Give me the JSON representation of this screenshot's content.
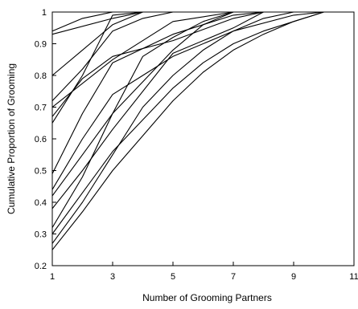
{
  "chart_data": {
    "type": "line",
    "title": "",
    "xlabel": "Number of Grooming Partners",
    "ylabel": "Cumulative Proportion of Grooming",
    "xlim": [
      1,
      11
    ],
    "ylim": [
      0.2,
      1
    ],
    "x_ticks": [
      1,
      3,
      5,
      7,
      9,
      11
    ],
    "y_ticks": [
      0.2,
      0.3,
      0.4,
      0.5,
      0.6,
      0.7,
      0.8,
      0.9,
      1
    ],
    "y_tick_labels": [
      "0.2",
      "0.3",
      "0.4",
      "0.5",
      "0.6",
      "0.7",
      "0.8",
      "0.9",
      "1"
    ],
    "grid": false,
    "legend": "none",
    "line_color": "#000000",
    "series": [
      {
        "points": [
          [
            1,
            0.94
          ],
          [
            2,
            0.98
          ],
          [
            3,
            1.0
          ]
        ]
      },
      {
        "points": [
          [
            1,
            0.93
          ],
          [
            3,
            0.98
          ],
          [
            4,
            1.0
          ]
        ]
      },
      {
        "points": [
          [
            1,
            0.8
          ],
          [
            2,
            0.88
          ],
          [
            3,
            0.96
          ],
          [
            4,
            1.0
          ]
        ]
      },
      {
        "points": [
          [
            1,
            0.72
          ],
          [
            2,
            0.82
          ],
          [
            3,
            0.94
          ],
          [
            4,
            0.98
          ],
          [
            5,
            1.0
          ]
        ]
      },
      {
        "points": [
          [
            1,
            0.7
          ],
          [
            3,
            0.85
          ],
          [
            5,
            0.97
          ],
          [
            7,
            1.0
          ]
        ]
      },
      {
        "points": [
          [
            1,
            0.67
          ],
          [
            2,
            0.79
          ],
          [
            3,
            0.86
          ],
          [
            5,
            0.91
          ],
          [
            7,
            0.98
          ],
          [
            8,
            1.0
          ]
        ]
      },
      {
        "points": [
          [
            1,
            0.65
          ],
          [
            2,
            0.8
          ],
          [
            3,
            0.99
          ],
          [
            4,
            1.0
          ]
        ]
      },
      {
        "points": [
          [
            1,
            0.49
          ],
          [
            2,
            0.68
          ],
          [
            3,
            0.84
          ],
          [
            5,
            0.93
          ],
          [
            7,
            0.99
          ],
          [
            8,
            1.0
          ]
        ]
      },
      {
        "points": [
          [
            1,
            0.44
          ],
          [
            2,
            0.6
          ],
          [
            3,
            0.74
          ],
          [
            4,
            0.8
          ],
          [
            5,
            0.86
          ],
          [
            7,
            0.94
          ],
          [
            9,
            0.99
          ],
          [
            10,
            1.0
          ]
        ]
      },
      {
        "points": [
          [
            1,
            0.42
          ],
          [
            2,
            0.55
          ],
          [
            3,
            0.68
          ],
          [
            5,
            0.88
          ],
          [
            6,
            0.96
          ],
          [
            7,
            1.0
          ]
        ]
      },
      {
        "points": [
          [
            1,
            0.38
          ],
          [
            2,
            0.5
          ],
          [
            3,
            0.63
          ],
          [
            5,
            0.87
          ],
          [
            7,
            0.95
          ],
          [
            8,
            1.0
          ]
        ]
      },
      {
        "points": [
          [
            1,
            0.32
          ],
          [
            2,
            0.48
          ],
          [
            3,
            0.68
          ],
          [
            4,
            0.86
          ],
          [
            5,
            0.92
          ],
          [
            6,
            0.97
          ],
          [
            7,
            1.0
          ]
        ]
      },
      {
        "points": [
          [
            1,
            0.3
          ],
          [
            2,
            0.43
          ],
          [
            3,
            0.56
          ],
          [
            4,
            0.66
          ],
          [
            5,
            0.76
          ],
          [
            6,
            0.84
          ],
          [
            7,
            0.9
          ],
          [
            8,
            0.94
          ],
          [
            9,
            0.97
          ],
          [
            10,
            1.0
          ]
        ]
      },
      {
        "points": [
          [
            1,
            0.27
          ],
          [
            2,
            0.4
          ],
          [
            3,
            0.55
          ],
          [
            4,
            0.7
          ],
          [
            5,
            0.8
          ],
          [
            6,
            0.88
          ],
          [
            7,
            0.94
          ],
          [
            8,
            0.98
          ],
          [
            9,
            1.0
          ]
        ]
      },
      {
        "points": [
          [
            1,
            0.25
          ],
          [
            2,
            0.37
          ],
          [
            3,
            0.5
          ],
          [
            4,
            0.61
          ],
          [
            5,
            0.72
          ],
          [
            6,
            0.81
          ],
          [
            7,
            0.88
          ],
          [
            8,
            0.93
          ],
          [
            9,
            0.97
          ],
          [
            10,
            1.0
          ]
        ]
      }
    ]
  }
}
